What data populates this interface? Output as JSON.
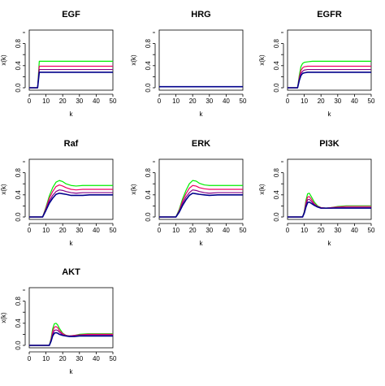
{
  "chart_data": [
    {
      "type": "line",
      "title": "EGF",
      "xlabel": "k",
      "ylabel": "x(k)",
      "xlim": [
        0,
        50
      ],
      "ylim": [
        0,
        1
      ],
      "xticks": [
        0,
        10,
        20,
        30,
        40,
        50
      ],
      "yticks": [
        0.0,
        0.4,
        0.8
      ],
      "series": [
        {
          "color": "#00ee00",
          "x": [
            0,
            5,
            6,
            50
          ],
          "y": [
            0,
            0,
            0.48,
            0.48
          ]
        },
        {
          "color": "#ee0066",
          "x": [
            0,
            5,
            6,
            50
          ],
          "y": [
            0,
            0,
            0.39,
            0.39
          ]
        },
        {
          "color": "#880088",
          "x": [
            0,
            5,
            6,
            50
          ],
          "y": [
            0,
            0,
            0.33,
            0.33
          ]
        },
        {
          "color": "#00008b",
          "x": [
            0,
            5,
            6,
            50
          ],
          "y": [
            0,
            0,
            0.28,
            0.28
          ]
        }
      ]
    },
    {
      "type": "line",
      "title": "HRG",
      "xlabel": "k",
      "ylabel": "x(k)",
      "xlim": [
        0,
        50
      ],
      "ylim": [
        0,
        1
      ],
      "xticks": [
        0,
        10,
        20,
        30,
        40,
        50
      ],
      "yticks": [
        0.0,
        0.4,
        0.8
      ],
      "series": [
        {
          "color": "#00ee00",
          "x": [
            0,
            50
          ],
          "y": [
            0.02,
            0.02
          ]
        },
        {
          "color": "#ee0066",
          "x": [
            0,
            50
          ],
          "y": [
            0.02,
            0.02
          ]
        },
        {
          "color": "#880088",
          "x": [
            0,
            50
          ],
          "y": [
            0.02,
            0.02
          ]
        },
        {
          "color": "#00008b",
          "x": [
            0,
            50
          ],
          "y": [
            0.02,
            0.02
          ]
        }
      ]
    },
    {
      "type": "line",
      "title": "EGFR",
      "xlabel": "k",
      "ylabel": "x(k)",
      "xlim": [
        0,
        50
      ],
      "ylim": [
        0,
        1
      ],
      "xticks": [
        0,
        10,
        20,
        30,
        40,
        50
      ],
      "yticks": [
        0.0,
        0.4,
        0.8
      ],
      "series": [
        {
          "color": "#00ee00",
          "x": [
            0,
            6,
            7,
            8,
            9,
            10,
            12,
            15,
            50
          ],
          "y": [
            0,
            0,
            0.22,
            0.38,
            0.44,
            0.46,
            0.47,
            0.48,
            0.48
          ]
        },
        {
          "color": "#ee0066",
          "x": [
            0,
            6,
            7,
            8,
            9,
            10,
            12,
            15,
            50
          ],
          "y": [
            0,
            0,
            0.18,
            0.31,
            0.36,
            0.38,
            0.39,
            0.39,
            0.39
          ]
        },
        {
          "color": "#880088",
          "x": [
            0,
            6,
            7,
            8,
            9,
            10,
            12,
            15,
            50
          ],
          "y": [
            0,
            0,
            0.15,
            0.26,
            0.3,
            0.32,
            0.33,
            0.33,
            0.33
          ]
        },
        {
          "color": "#00008b",
          "x": [
            0,
            6,
            7,
            8,
            9,
            10,
            12,
            15,
            50
          ],
          "y": [
            0,
            0,
            0.13,
            0.22,
            0.26,
            0.27,
            0.28,
            0.28,
            0.28
          ]
        }
      ]
    },
    {
      "type": "line",
      "title": "Raf",
      "xlabel": "k",
      "ylabel": "x(k)",
      "xlim": [
        0,
        50
      ],
      "ylim": [
        0,
        1
      ],
      "xticks": [
        0,
        10,
        20,
        30,
        40,
        50
      ],
      "yticks": [
        0.0,
        0.4,
        0.8
      ],
      "series": [
        {
          "color": "#00ee00",
          "x": [
            0,
            8,
            10,
            12,
            14,
            16,
            18,
            20,
            22,
            25,
            28,
            32,
            36,
            40,
            45,
            50
          ],
          "y": [
            0,
            0,
            0.18,
            0.38,
            0.53,
            0.63,
            0.66,
            0.64,
            0.6,
            0.57,
            0.56,
            0.57,
            0.57,
            0.57,
            0.57,
            0.57
          ]
        },
        {
          "color": "#ee0066",
          "x": [
            0,
            8,
            10,
            12,
            14,
            16,
            18,
            20,
            22,
            25,
            28,
            32,
            36,
            40,
            45,
            50
          ],
          "y": [
            0,
            0,
            0.16,
            0.34,
            0.46,
            0.55,
            0.58,
            0.56,
            0.53,
            0.5,
            0.49,
            0.5,
            0.5,
            0.5,
            0.5,
            0.5
          ]
        },
        {
          "color": "#880088",
          "x": [
            0,
            8,
            10,
            12,
            14,
            16,
            18,
            20,
            22,
            25,
            28,
            32,
            36,
            40,
            45,
            50
          ],
          "y": [
            0,
            0,
            0.14,
            0.29,
            0.39,
            0.46,
            0.49,
            0.48,
            0.46,
            0.44,
            0.43,
            0.44,
            0.44,
            0.44,
            0.44,
            0.44
          ]
        },
        {
          "color": "#00008b",
          "x": [
            0,
            8,
            10,
            12,
            14,
            16,
            18,
            20,
            22,
            25,
            28,
            32,
            36,
            40,
            45,
            50
          ],
          "y": [
            0,
            0,
            0.12,
            0.25,
            0.34,
            0.41,
            0.43,
            0.42,
            0.41,
            0.39,
            0.39,
            0.39,
            0.4,
            0.4,
            0.4,
            0.4
          ]
        }
      ]
    },
    {
      "type": "line",
      "title": "ERK",
      "xlabel": "k",
      "ylabel": "x(k)",
      "xlim": [
        0,
        50
      ],
      "ylim": [
        0,
        1
      ],
      "xticks": [
        0,
        10,
        20,
        30,
        40,
        50
      ],
      "yticks": [
        0.0,
        0.4,
        0.8
      ],
      "series": [
        {
          "color": "#00ee00",
          "x": [
            0,
            10,
            12,
            14,
            16,
            18,
            20,
            22,
            24,
            27,
            30,
            35,
            40,
            45,
            50
          ],
          "y": [
            0,
            0,
            0.14,
            0.33,
            0.48,
            0.6,
            0.66,
            0.65,
            0.61,
            0.58,
            0.57,
            0.57,
            0.57,
            0.57,
            0.57
          ]
        },
        {
          "color": "#ee0066",
          "x": [
            0,
            10,
            12,
            14,
            16,
            18,
            20,
            22,
            24,
            27,
            30,
            35,
            40,
            45,
            50
          ],
          "y": [
            0,
            0,
            0.12,
            0.29,
            0.42,
            0.52,
            0.57,
            0.56,
            0.53,
            0.51,
            0.5,
            0.5,
            0.5,
            0.5,
            0.5
          ]
        },
        {
          "color": "#880088",
          "x": [
            0,
            10,
            12,
            14,
            16,
            18,
            20,
            22,
            24,
            27,
            30,
            35,
            40,
            45,
            50
          ],
          "y": [
            0,
            0,
            0.1,
            0.25,
            0.36,
            0.44,
            0.49,
            0.48,
            0.46,
            0.44,
            0.43,
            0.44,
            0.44,
            0.44,
            0.44
          ]
        },
        {
          "color": "#00008b",
          "x": [
            0,
            10,
            12,
            14,
            16,
            18,
            20,
            22,
            24,
            27,
            30,
            35,
            40,
            45,
            50
          ],
          "y": [
            0,
            0,
            0.09,
            0.21,
            0.31,
            0.39,
            0.43,
            0.42,
            0.41,
            0.4,
            0.39,
            0.4,
            0.4,
            0.4,
            0.4
          ]
        }
      ]
    },
    {
      "type": "line",
      "title": "PI3K",
      "xlabel": "k",
      "ylabel": "x(k)",
      "xlim": [
        0,
        50
      ],
      "ylim": [
        0,
        1
      ],
      "xticks": [
        0,
        10,
        20,
        30,
        40,
        50
      ],
      "yticks": [
        0.0,
        0.4,
        0.8
      ],
      "series": [
        {
          "color": "#00ee00",
          "x": [
            0,
            9,
            10,
            11,
            12,
            13,
            14,
            16,
            18,
            20,
            23,
            26,
            30,
            35,
            40,
            45,
            50
          ],
          "y": [
            0,
            0,
            0.1,
            0.3,
            0.42,
            0.43,
            0.38,
            0.27,
            0.2,
            0.17,
            0.16,
            0.17,
            0.19,
            0.2,
            0.2,
            0.2,
            0.2
          ]
        },
        {
          "color": "#ee0066",
          "x": [
            0,
            9,
            10,
            11,
            12,
            13,
            14,
            16,
            18,
            20,
            23,
            26,
            30,
            35,
            40,
            45,
            50
          ],
          "y": [
            0,
            0,
            0.09,
            0.26,
            0.36,
            0.37,
            0.33,
            0.24,
            0.19,
            0.17,
            0.16,
            0.17,
            0.18,
            0.19,
            0.19,
            0.19,
            0.19
          ]
        },
        {
          "color": "#880088",
          "x": [
            0,
            9,
            10,
            11,
            12,
            13,
            14,
            16,
            18,
            20,
            23,
            26,
            30,
            35,
            40,
            45,
            50
          ],
          "y": [
            0,
            0,
            0.08,
            0.22,
            0.31,
            0.32,
            0.29,
            0.22,
            0.18,
            0.16,
            0.16,
            0.16,
            0.17,
            0.17,
            0.17,
            0.17,
            0.17
          ]
        },
        {
          "color": "#00008b",
          "x": [
            0,
            9,
            10,
            11,
            12,
            13,
            14,
            16,
            18,
            20,
            23,
            26,
            30,
            35,
            40,
            45,
            50
          ],
          "y": [
            0,
            0,
            0.07,
            0.18,
            0.26,
            0.27,
            0.25,
            0.21,
            0.18,
            0.16,
            0.16,
            0.16,
            0.16,
            0.16,
            0.16,
            0.16,
            0.16
          ]
        }
      ]
    },
    {
      "type": "line",
      "title": "AKT",
      "xlabel": "k",
      "ylabel": "x(k)",
      "xlim": [
        0,
        50
      ],
      "ylim": [
        0,
        1
      ],
      "xticks": [
        0,
        10,
        20,
        30,
        40,
        50
      ],
      "yticks": [
        0.0,
        0.4,
        0.8
      ],
      "series": [
        {
          "color": "#00ee00",
          "x": [
            0,
            12,
            13,
            14,
            15,
            16,
            17,
            18,
            20,
            22,
            24,
            27,
            30,
            35,
            40,
            45,
            50
          ],
          "y": [
            0,
            0,
            0.12,
            0.3,
            0.39,
            0.4,
            0.37,
            0.31,
            0.22,
            0.18,
            0.17,
            0.18,
            0.2,
            0.21,
            0.21,
            0.21,
            0.21
          ]
        },
        {
          "color": "#ee0066",
          "x": [
            0,
            12,
            13,
            14,
            15,
            16,
            17,
            18,
            20,
            22,
            24,
            27,
            30,
            35,
            40,
            45,
            50
          ],
          "y": [
            0,
            0,
            0.1,
            0.25,
            0.33,
            0.34,
            0.32,
            0.27,
            0.21,
            0.18,
            0.17,
            0.18,
            0.19,
            0.2,
            0.2,
            0.2,
            0.2
          ]
        },
        {
          "color": "#880088",
          "x": [
            0,
            12,
            13,
            14,
            15,
            16,
            17,
            18,
            20,
            22,
            24,
            27,
            30,
            35,
            40,
            45,
            50
          ],
          "y": [
            0,
            0,
            0.08,
            0.2,
            0.27,
            0.28,
            0.27,
            0.24,
            0.19,
            0.17,
            0.17,
            0.17,
            0.18,
            0.18,
            0.18,
            0.18,
            0.18
          ]
        },
        {
          "color": "#00008b",
          "x": [
            0,
            12,
            13,
            14,
            15,
            16,
            17,
            18,
            20,
            22,
            24,
            27,
            30,
            35,
            40,
            45,
            50
          ],
          "y": [
            0,
            0,
            0.07,
            0.17,
            0.22,
            0.23,
            0.22,
            0.2,
            0.18,
            0.17,
            0.16,
            0.16,
            0.17,
            0.17,
            0.17,
            0.17,
            0.17
          ]
        }
      ]
    }
  ]
}
